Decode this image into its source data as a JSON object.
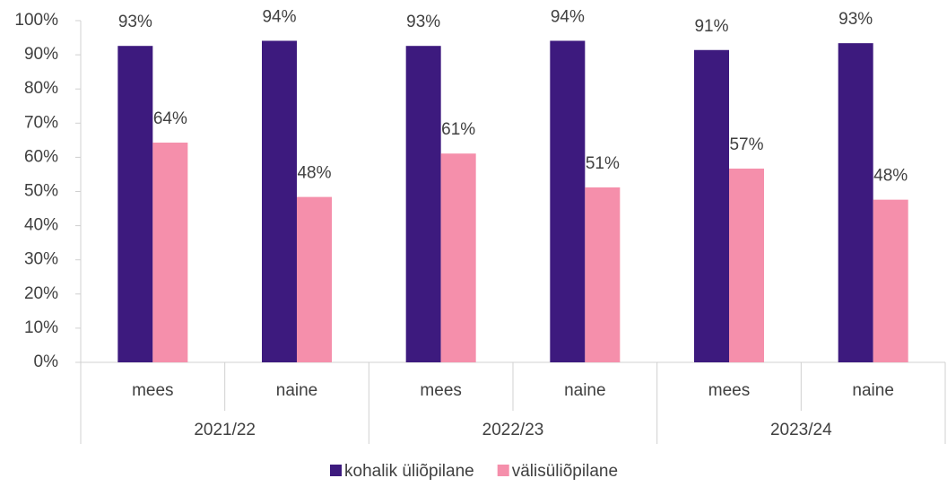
{
  "chart_data": {
    "type": "bar",
    "categories": [
      "mees",
      "naine",
      "mees",
      "naine",
      "mees",
      "naine"
    ],
    "category_groups": [
      "2021/22",
      "2022/23",
      "2023/24"
    ],
    "series": [
      {
        "name": "kohalik üliõpilane",
        "color": "#3d1a7e",
        "values": [
          92.6,
          94.1,
          92.6,
          94.1,
          91.4,
          93.4
        ],
        "value_labels": [
          "93%",
          "94%",
          "93%",
          "94%",
          "91%",
          "93%"
        ]
      },
      {
        "name": "välisüliõpilane",
        "color": "#f58fab",
        "values": [
          64.3,
          48.4,
          61.1,
          51.2,
          56.7,
          47.6
        ],
        "value_labels": [
          "64%",
          "48%",
          "61%",
          "51%",
          "57%",
          "48%"
        ]
      }
    ],
    "ylim": [
      0,
      100
    ],
    "yticks": [
      {
        "value": 0,
        "label": "0%"
      },
      {
        "value": 10,
        "label": "10%"
      },
      {
        "value": 20,
        "label": "20%"
      },
      {
        "value": 30,
        "label": "30%"
      },
      {
        "value": 40,
        "label": "40%"
      },
      {
        "value": 50,
        "label": "50%"
      },
      {
        "value": 60,
        "label": "60%"
      },
      {
        "value": 70,
        "label": "70%"
      },
      {
        "value": 80,
        "label": "80%"
      },
      {
        "value": 90,
        "label": "90%"
      },
      {
        "value": 100,
        "label": "100%"
      }
    ],
    "grid": false
  }
}
